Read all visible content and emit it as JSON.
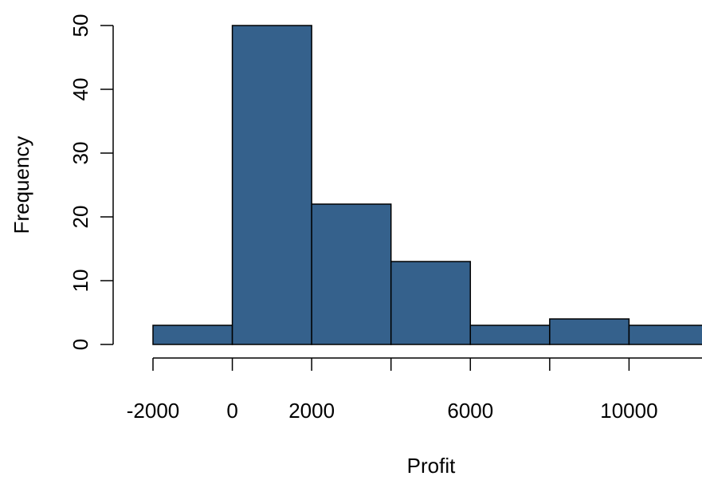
{
  "chart_data": {
    "type": "bar",
    "subtype": "histogram",
    "title": "",
    "xlabel": "Profit",
    "ylabel": "Frequency",
    "bins": [
      {
        "start": -2000,
        "end": 0,
        "count": 3
      },
      {
        "start": 0,
        "end": 2000,
        "count": 50
      },
      {
        "start": 2000,
        "end": 4000,
        "count": 22
      },
      {
        "start": 4000,
        "end": 6000,
        "count": 13
      },
      {
        "start": 6000,
        "end": 8000,
        "count": 3
      },
      {
        "start": 8000,
        "end": 10000,
        "count": 4
      },
      {
        "start": 10000,
        "end": 12000,
        "count": 3
      }
    ],
    "x_ticks": [
      -2000,
      0,
      2000,
      4000,
      6000,
      8000,
      10000
    ],
    "x_tick_labels": [
      "-2000",
      "0",
      "2000",
      "",
      "6000",
      "",
      "10000"
    ],
    "y_ticks": [
      0,
      10,
      20,
      30,
      40,
      50
    ],
    "y_tick_labels": [
      "0",
      "10",
      "20",
      "30",
      "40",
      "50"
    ],
    "xlim": [
      -2000,
      12000
    ],
    "ylim": [
      0,
      50
    ],
    "grid": false,
    "legend": "none",
    "bar_color": "#35618c"
  }
}
